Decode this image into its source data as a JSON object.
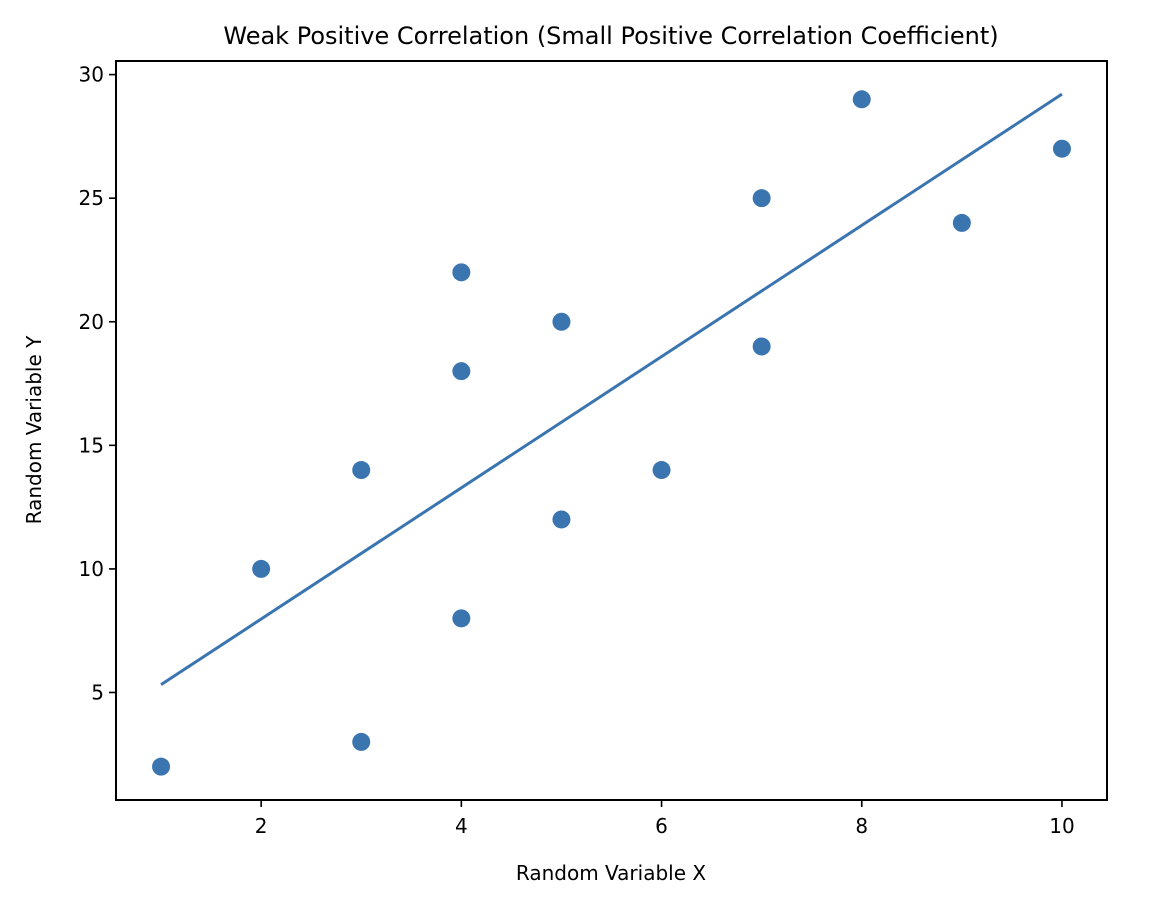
{
  "chart_data": {
    "type": "scatter",
    "title": "Weak Positive Correlation (Small Positive Correlation Coefficient)",
    "xlabel": "Random Variable X",
    "ylabel": "Random Variable Y",
    "xlim": [
      0.55,
      10.45
    ],
    "ylim": [
      0.65,
      30.55
    ],
    "x_ticks": [
      2,
      4,
      6,
      8,
      10
    ],
    "x_tick_labels": [
      "2",
      "4",
      "6",
      "8",
      "10"
    ],
    "y_ticks": [
      5,
      10,
      15,
      20,
      25,
      30
    ],
    "y_tick_labels": [
      "5",
      "10",
      "15",
      "20",
      "25",
      "30"
    ],
    "grid": false,
    "legend": "none",
    "series": [
      {
        "name": "data",
        "kind": "scatter",
        "color": "#3a75b0",
        "x": [
          1,
          2,
          3,
          3,
          4,
          4,
          4,
          5,
          5,
          6,
          7,
          7,
          8,
          9,
          10
        ],
        "y": [
          2,
          10,
          3,
          14,
          8,
          18,
          22,
          12,
          20,
          14,
          19,
          25,
          29,
          24,
          27
        ]
      },
      {
        "name": "regression-line",
        "kind": "line",
        "color": "#3a75b0",
        "slope": 2.6547,
        "intercept": 2.662,
        "x_range": [
          1,
          10
        ]
      }
    ]
  }
}
